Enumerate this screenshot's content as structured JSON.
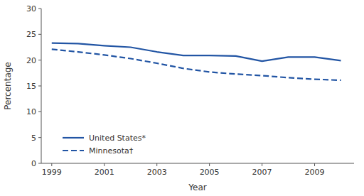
{
  "chart_data": {
    "type": "line",
    "x": [
      1999,
      2000,
      2001,
      2002,
      2003,
      2004,
      2005,
      2006,
      2007,
      2008,
      2009,
      2010
    ],
    "series": [
      {
        "name": "United States*",
        "color": "#2255a4",
        "line_style": "solid",
        "values": [
          23.3,
          23.2,
          22.8,
          22.5,
          21.6,
          20.9,
          20.9,
          20.8,
          19.8,
          20.6,
          20.6,
          19.9
        ]
      },
      {
        "name": "Minnesota†",
        "color": "#2255a4",
        "line_style": "dashed",
        "values": [
          22.1,
          21.6,
          21.0,
          20.3,
          19.4,
          18.4,
          17.7,
          17.3,
          17.0,
          16.6,
          16.3,
          16.1
        ]
      }
    ],
    "xlim": [
      1998.6,
      2010.5
    ],
    "ylim": [
      0,
      30
    ],
    "xticks": [
      1999,
      2001,
      2003,
      2005,
      2007,
      2009
    ],
    "yticks": [
      0,
      5,
      10,
      15,
      20,
      25,
      30
    ],
    "xlabel": "Year",
    "ylabel": "Percentage",
    "grid": false,
    "legend": "lower left"
  }
}
